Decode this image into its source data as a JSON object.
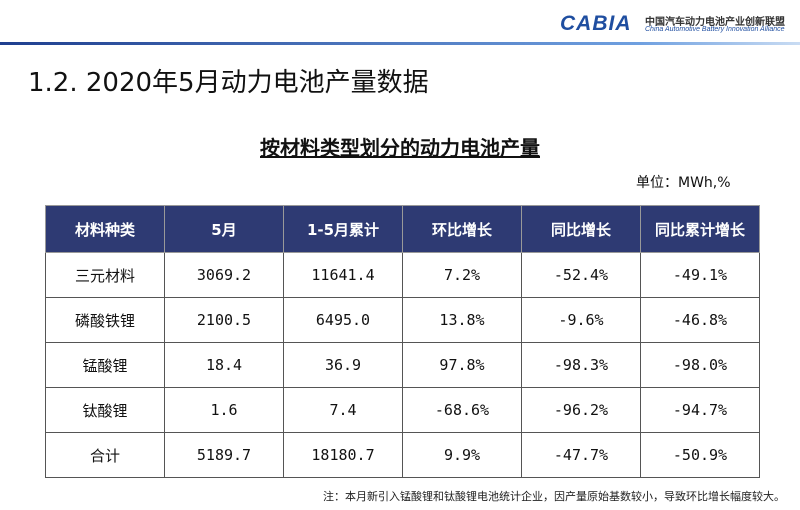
{
  "header": {
    "logo": "CABIA",
    "org_cn": "中国汽车动力电池产业创新联盟",
    "org_en": "China Automotive Battery Innovation Alliance"
  },
  "title": "1.2. 2020年5月动力电池产量数据",
  "subtitle": "按材料类型划分的动力电池产量",
  "unit": "单位：MWh,%",
  "table": {
    "columns": [
      "材料种类",
      "5月",
      "1-5月累计",
      "环比增长",
      "同比增长",
      "同比累计增长"
    ],
    "rows": [
      [
        "三元材料",
        "3069.2",
        "11641.4",
        "7.2%",
        "-52.4%",
        "-49.1%"
      ],
      [
        "磷酸铁锂",
        "2100.5",
        "6495.0",
        "13.8%",
        "-9.6%",
        "-46.8%"
      ],
      [
        "锰酸锂",
        "18.4",
        "36.9",
        "97.8%",
        "-98.3%",
        "-98.0%"
      ],
      [
        "钛酸锂",
        "1.6",
        "7.4",
        "-68.6%",
        "-96.2%",
        "-94.7%"
      ],
      [
        "合计",
        "5189.7",
        "18180.7",
        "9.9%",
        "-47.7%",
        "-50.9%"
      ]
    ]
  },
  "note": "注：本月新引入锰酸锂和钛酸锂电池统计企业，因产量原始基数较小，导致环比增长幅度较大。"
}
